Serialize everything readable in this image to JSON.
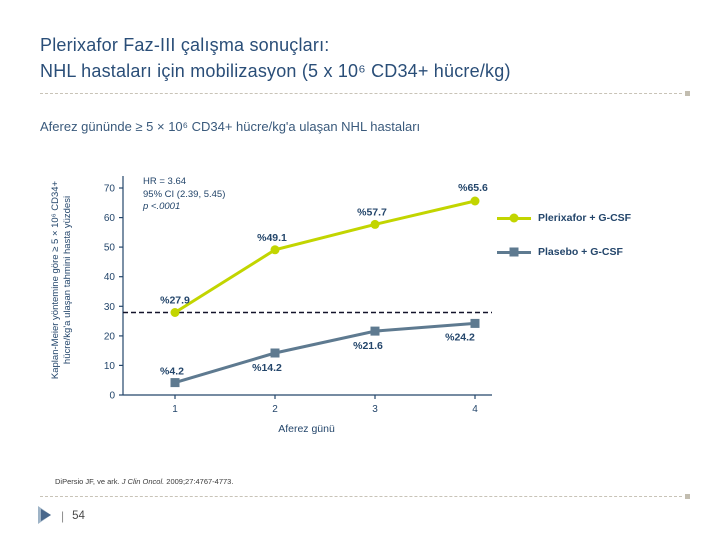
{
  "slide": {
    "title_line1": "Plerixafor Faz-III çalışma sonuçları:",
    "title_line2": "NHL hastaları için mobilizasyon (5 x 10⁶ CD34+ hücre/kg)",
    "footer": {
      "citation_author": "DiPersio JF, ve ark. ",
      "citation_journal": "J Clin Oncol.",
      "citation_detail": " 2009;27:4767-4773.",
      "page_separator": "|",
      "page_number": "54"
    }
  },
  "chart_data": {
    "type": "line",
    "title": "Aferez gününde ≥ 5 × 10⁶ CD34+ hücre/kg'a ulaşan NHL hastaları",
    "xlabel": "Aferez günü",
    "ylabel_line1": "Kaplan-Meier yöntemine göre ≥ 5 × 10⁶ CD34+",
    "ylabel_line2": "hücre/kg'a ulaşan tahmini hasta yüzdesi",
    "x": [
      1,
      2,
      3,
      4
    ],
    "xticks": [
      1,
      2,
      3,
      4
    ],
    "yticks": [
      0,
      10,
      20,
      30,
      40,
      50,
      60,
      70
    ],
    "ylim": [
      0,
      70
    ],
    "grid": false,
    "legend_position": "right",
    "series": [
      {
        "name": "Plerixafor + G-CSF",
        "values": [
          27.9,
          49.1,
          57.7,
          65.6
        ],
        "data_labels": [
          "%27.9",
          "%49.1",
          "%57.7",
          "%65.6"
        ],
        "color": "#C2D500",
        "marker": "circle"
      },
      {
        "name": "Plasebo + G-CSF",
        "values": [
          4.2,
          14.2,
          21.6,
          24.2
        ],
        "data_labels": [
          "%4.2",
          "%14.2",
          "%21.6",
          "%24.2"
        ],
        "color": "#5E7A90",
        "marker": "square"
      }
    ],
    "reference_line": {
      "y": 27.9,
      "style": "dashed",
      "color": "#14142B"
    },
    "annotation": {
      "line1": "HR = 3.64",
      "line2": "95% CI (2.39, 5.45)",
      "line3": "p <.0001"
    }
  },
  "colors": {
    "title_text": "#2A4E78",
    "chart_text": "#24466B",
    "plerixafor_line": "#C2D500",
    "plasebo_line": "#5E7A90",
    "separator": "#C8C3B7"
  }
}
